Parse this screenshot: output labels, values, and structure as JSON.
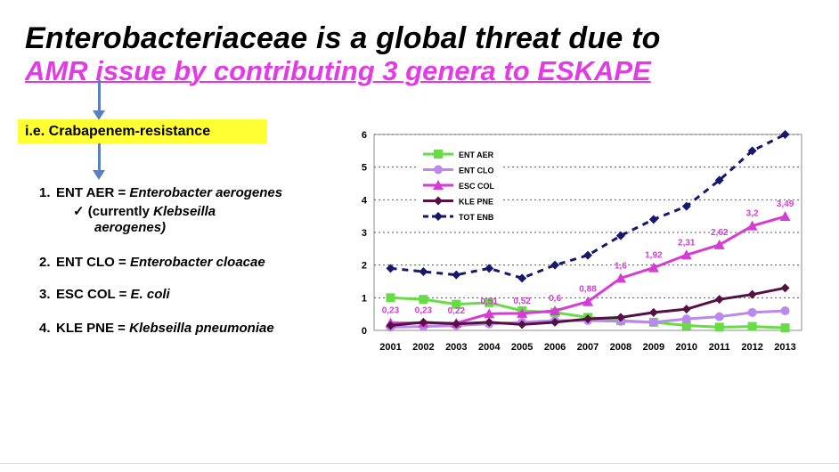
{
  "slide": {
    "title_line1": "Enterobacteriaceae is a global threat due to",
    "title_line2": "AMR issue by contributing 3 genera to ESKAPE",
    "highlight": "i.e. Crabapenem-resistance",
    "items": [
      {
        "num": "1.",
        "code": "ENT AER",
        "eq": " = ",
        "name": "Enterobacter aerogenes"
      },
      {
        "num": "2.",
        "code": "ENT CLO",
        "eq": " = ",
        "name": "Enterobacter cloacae"
      },
      {
        "num": "3.",
        "code": "ESC COL",
        "eq": " = ",
        "name": "E. coli"
      },
      {
        "num": "4.",
        "code": "KLE PNE",
        "eq": " = ",
        "name": "Klebseilla pneumoniae"
      }
    ],
    "sub_note": {
      "check": "✓",
      "prefix": "(currently ",
      "name1": "Klebseilla",
      "name2": "aerogenes)"
    },
    "colors": {
      "title_pink": "#e23be6",
      "highlight": "#ffff33",
      "arrow": "#5b7fc2"
    }
  },
  "chart_data": {
    "type": "line",
    "categories": [
      "2001",
      "2002",
      "2003",
      "2004",
      "2005",
      "2006",
      "2007",
      "2008",
      "2009",
      "2010",
      "2011",
      "2012",
      "2013"
    ],
    "ylim": [
      0,
      6
    ],
    "yticks": [
      "0",
      "1",
      "2",
      "3",
      "4",
      "5",
      "6"
    ],
    "grid": "horizontal dotted",
    "legend_position": "top-left",
    "series": [
      {
        "name": "ENT AER",
        "color": "#66dd44",
        "marker": "square",
        "dash": false,
        "values": [
          1.0,
          0.95,
          0.8,
          0.85,
          0.6,
          0.55,
          0.4,
          0.3,
          0.25,
          0.15,
          0.1,
          0.12,
          0.08
        ]
      },
      {
        "name": "ENT CLO",
        "color": "#bb88ee",
        "marker": "circle",
        "dash": false,
        "values": [
          0.1,
          0.12,
          0.15,
          0.2,
          0.25,
          0.3,
          0.3,
          0.28,
          0.25,
          0.35,
          0.42,
          0.55,
          0.6
        ]
      },
      {
        "name": "ESC COL",
        "color": "#d63bd6",
        "marker": "triangle",
        "dash": false,
        "values": [
          0.23,
          0.23,
          0.22,
          0.51,
          0.52,
          0.6,
          0.88,
          1.6,
          1.92,
          2.31,
          2.62,
          3.2,
          3.49
        ],
        "labels": [
          "0,23",
          "0,23",
          "0,22",
          "0,51",
          "0,52",
          "0,6",
          "0,88",
          "1,6",
          "1,92",
          "2,31",
          "2,62",
          "3,2",
          "3,49"
        ]
      },
      {
        "name": "KLE PNE",
        "color": "#551144",
        "marker": "diamond",
        "dash": false,
        "values": [
          0.15,
          0.25,
          0.2,
          0.25,
          0.18,
          0.25,
          0.35,
          0.4,
          0.55,
          0.65,
          0.95,
          1.1,
          1.3
        ]
      },
      {
        "name": "TOT ENB",
        "color": "#15186b",
        "marker": "diamond",
        "dash": true,
        "values": [
          1.9,
          1.8,
          1.7,
          1.9,
          1.6,
          2.0,
          2.3,
          2.9,
          3.4,
          3.8,
          4.6,
          5.5,
          6.0
        ]
      }
    ]
  }
}
